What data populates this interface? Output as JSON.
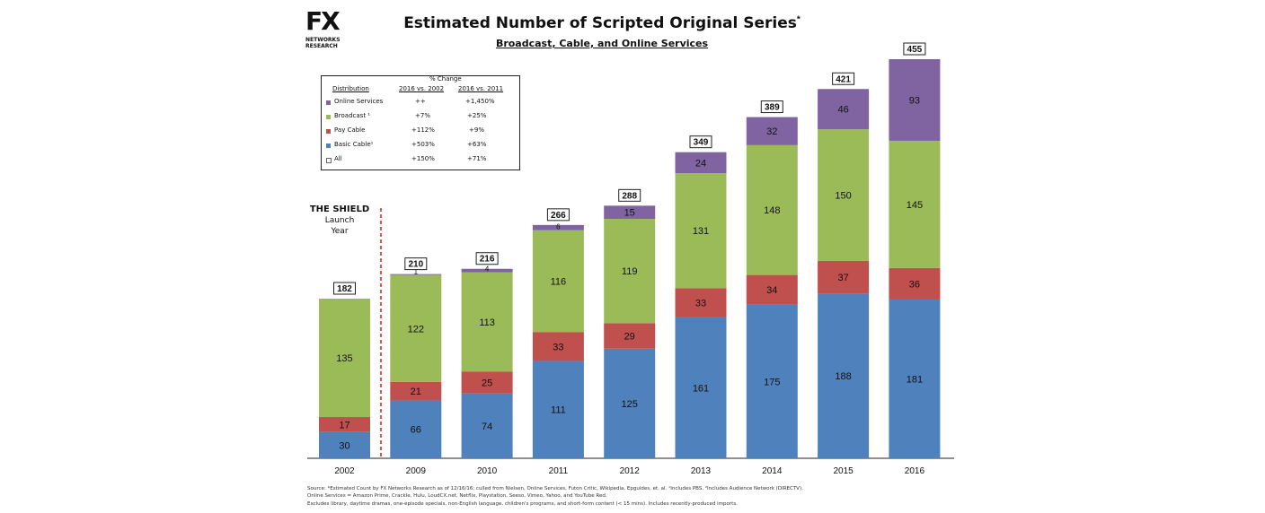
{
  "logo": {
    "mark": "FX",
    "line1": "NETWORKS",
    "line2": "RESEARCH"
  },
  "title": "Estimated Number of Scripted Original Series",
  "title_marker": "*",
  "subtitle": "Broadcast, Cable, and Online Services",
  "annotation": {
    "line1": "THE SHIELD",
    "line2": "Launch",
    "line3": "Year"
  },
  "legend": {
    "pct_change_label": "% Change",
    "col_distribution": "Distribution",
    "col_a": "2016 vs. 2002",
    "col_b": "2016 vs. 2011",
    "rows": [
      {
        "label": "Online Services",
        "a": "++",
        "b": "+1,450%"
      },
      {
        "label": "Broadcast ¹",
        "a": "+7%",
        "b": "+25%"
      },
      {
        "label": "Pay Cable",
        "a": "+112%",
        "b": "+9%"
      },
      {
        "label": "Basic Cable¹",
        "a": "+503%",
        "b": "+63%"
      },
      {
        "label": "All",
        "a": "+150%",
        "b": "+71%"
      }
    ]
  },
  "colors": {
    "basic_cable": "#4f81bd",
    "pay_cable": "#c0504d",
    "broadcast": "#9bbb59",
    "online": "#8064a2",
    "all": "#ffffff"
  },
  "chart_data": {
    "type": "bar",
    "stacked": true,
    "title": "Estimated Number of Scripted Original Series",
    "subtitle": "Broadcast, Cable, and Online Services",
    "categories": [
      "2002",
      "2009",
      "2010",
      "2011",
      "2012",
      "2013",
      "2014",
      "2015",
      "2016"
    ],
    "series": [
      {
        "name": "Basic Cable",
        "values": [
          30,
          66,
          74,
          111,
          125,
          161,
          175,
          188,
          181
        ]
      },
      {
        "name": "Pay Cable",
        "values": [
          17,
          21,
          25,
          33,
          29,
          33,
          34,
          37,
          36
        ]
      },
      {
        "name": "Broadcast",
        "values": [
          135,
          122,
          113,
          116,
          119,
          131,
          148,
          150,
          145
        ]
      },
      {
        "name": "Online Services",
        "values": [
          0,
          1,
          4,
          6,
          15,
          24,
          32,
          46,
          93
        ]
      }
    ],
    "totals": [
      182,
      210,
      216,
      266,
      288,
      349,
      389,
      421,
      455
    ],
    "show_segment_labels": [
      [
        true,
        true,
        true,
        false
      ],
      [
        true,
        true,
        true,
        true
      ],
      [
        true,
        true,
        true,
        true
      ],
      [
        true,
        true,
        true,
        true
      ],
      [
        true,
        true,
        true,
        true
      ],
      [
        true,
        true,
        true,
        true
      ],
      [
        true,
        true,
        true,
        true
      ],
      [
        true,
        true,
        true,
        true
      ],
      [
        true,
        true,
        true,
        true
      ]
    ],
    "ylim": [
      0,
      460
    ],
    "xlabel": "",
    "ylabel": "",
    "grid": false
  },
  "footnotes": [
    "Source:  *Estimated Count by FX Networks Research as of 12/16/16; culled from Nielsen, Online Services, Futon Critic, Wikipedia, Epguides, et. al.  ¹Includes PBS.  ²Includes Audience Network (DIRECTV).",
    "Online Services = Amazon Prime, Crackle, Hulu, LoudCX.net, Netflix, Playstation, Seeso, Vimeo, Yahoo, and YouTube Red.",
    "Excludes library, daytime dramas, one-episode specials, non-English language, children's programs, and short-form content (< 15 mins). Includes recently-produced imports."
  ]
}
